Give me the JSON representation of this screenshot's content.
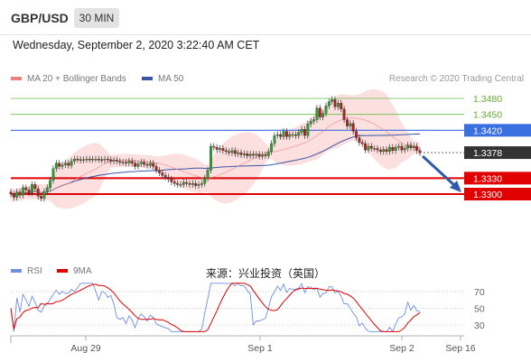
{
  "header": {
    "symbol": "GBP/USD",
    "timeframe": "30 MIN",
    "datetime": "Wednesday, September 2, 2020 3:22:40 AM CET"
  },
  "legend": {
    "bollinger_label": "MA 20 + Bollinger Bands",
    "bollinger_color": "#f08080",
    "ma50_label": "MA 50",
    "ma50_color": "#3a55a4"
  },
  "credit": "Research © 2020 Trading Central",
  "rsi_legend": {
    "rsi_label": "RSI",
    "rsi_color": "#6f8ee0",
    "ma9_label": "9MA",
    "ma9_color": "#e00000"
  },
  "source_text": "来源：兴业投资（英国）",
  "chart_data": [
    {
      "type": "candlestick",
      "title": "GBP/USD 30 MIN",
      "x_ticks": [
        "Aug 29",
        "Sep 1",
        "Sep 2",
        "Sep 16"
      ],
      "horizontal_levels": [
        {
          "value": 1.348,
          "label": "1.3480",
          "color": "#66bb44",
          "kind": "resistance"
        },
        {
          "value": 1.345,
          "label": "1.3450",
          "color": "#66bb44",
          "kind": "resistance"
        },
        {
          "value": 1.342,
          "label": "1.3420",
          "color": "#3a6fe0",
          "kind": "pivot"
        },
        {
          "value": 1.3378,
          "label": "1.3378",
          "color": "#333333",
          "kind": "current price"
        },
        {
          "value": 1.333,
          "label": "1.3330",
          "color": "#e00000",
          "kind": "support"
        },
        {
          "value": 1.33,
          "label": "1.3300",
          "color": "#e00000",
          "kind": "support"
        }
      ],
      "close_series": [
        1.33,
        1.3294,
        1.3304,
        1.3298,
        1.3312,
        1.3308,
        1.3302,
        1.3318,
        1.331,
        1.3296,
        1.3292,
        1.3305,
        1.3312,
        1.3326,
        1.3348,
        1.3358,
        1.3352,
        1.3355,
        1.3358,
        1.3354,
        1.3362,
        1.3366,
        1.3365,
        1.3364,
        1.3365,
        1.3366,
        1.3365,
        1.3366,
        1.3366,
        1.3365,
        1.3364,
        1.3366,
        1.3365,
        1.3362,
        1.3364,
        1.3362,
        1.336,
        1.336,
        1.3358,
        1.3362,
        1.3358,
        1.3352,
        1.3357,
        1.336,
        1.3356,
        1.3354,
        1.3358,
        1.3352,
        1.3345,
        1.334,
        1.3335,
        1.3332,
        1.3328,
        1.3323,
        1.332,
        1.3318,
        1.3318,
        1.3322,
        1.332,
        1.3318,
        1.332,
        1.3316,
        1.3318,
        1.332,
        1.333,
        1.3345,
        1.339,
        1.3388,
        1.3384,
        1.3386,
        1.3382,
        1.338,
        1.3378,
        1.3382,
        1.3376,
        1.3378,
        1.3374,
        1.3376,
        1.3372,
        1.3375,
        1.3373,
        1.3375,
        1.3371,
        1.3374,
        1.3372,
        1.338,
        1.3395,
        1.341,
        1.3412,
        1.3408,
        1.3418,
        1.3408,
        1.3412,
        1.3412,
        1.341,
        1.3416,
        1.3422,
        1.341,
        1.3432,
        1.3437,
        1.344,
        1.3462,
        1.3445,
        1.3452,
        1.3466,
        1.3474,
        1.3478,
        1.3464,
        1.3471,
        1.346,
        1.344,
        1.3428,
        1.3433,
        1.3418,
        1.3406,
        1.3397,
        1.3395,
        1.3383,
        1.339,
        1.3386,
        1.3386,
        1.3383,
        1.338,
        1.3384,
        1.338,
        1.3388,
        1.3382,
        1.3388,
        1.339,
        1.3383,
        1.3386,
        1.3392,
        1.3387,
        1.339,
        1.3382,
        1.3378
      ],
      "annotation": "arrow pointing down from 1.3378 toward support 1.3300",
      "grid": false
    },
    {
      "type": "line",
      "title": "RSI",
      "series": [
        {
          "name": "RSI",
          "color": "#6f8ee0"
        },
        {
          "name": "9MA",
          "color": "#e00000"
        }
      ],
      "y_ticks": [
        70,
        50,
        30
      ],
      "ylim": [
        20,
        80
      ]
    }
  ]
}
